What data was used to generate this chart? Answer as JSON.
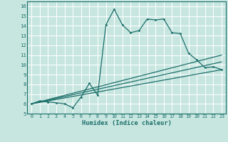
{
  "xlabel": "Humidex (Indice chaleur)",
  "bg_color": "#c8e6e0",
  "line_color": "#1a6e6a",
  "grid_color": "#ffffff",
  "xlim": [
    -0.5,
    23.5
  ],
  "ylim": [
    5,
    16.5
  ],
  "yticks": [
    5,
    6,
    7,
    8,
    9,
    10,
    11,
    12,
    13,
    14,
    15,
    16
  ],
  "xticks": [
    0,
    1,
    2,
    3,
    4,
    5,
    6,
    7,
    8,
    9,
    10,
    11,
    12,
    13,
    14,
    15,
    16,
    17,
    18,
    19,
    20,
    21,
    22,
    23
  ],
  "line1_x": [
    0,
    1,
    2,
    3,
    4,
    5,
    6,
    7,
    8,
    9,
    10,
    11,
    12,
    13,
    14,
    15,
    16,
    17,
    18,
    19,
    20,
    21,
    22,
    23
  ],
  "line1_y": [
    6.0,
    6.3,
    6.2,
    6.1,
    6.0,
    5.6,
    6.7,
    8.1,
    6.9,
    14.1,
    15.7,
    14.1,
    13.3,
    13.5,
    14.7,
    14.6,
    14.7,
    13.3,
    13.2,
    11.2,
    10.5,
    9.7,
    9.8,
    9.5
  ],
  "line2_x": [
    0,
    23
  ],
  "line2_y": [
    6.0,
    9.5
  ],
  "line3_x": [
    0,
    23
  ],
  "line3_y": [
    6.0,
    10.3
  ],
  "line4_x": [
    0,
    23
  ],
  "line4_y": [
    6.0,
    11.0
  ]
}
